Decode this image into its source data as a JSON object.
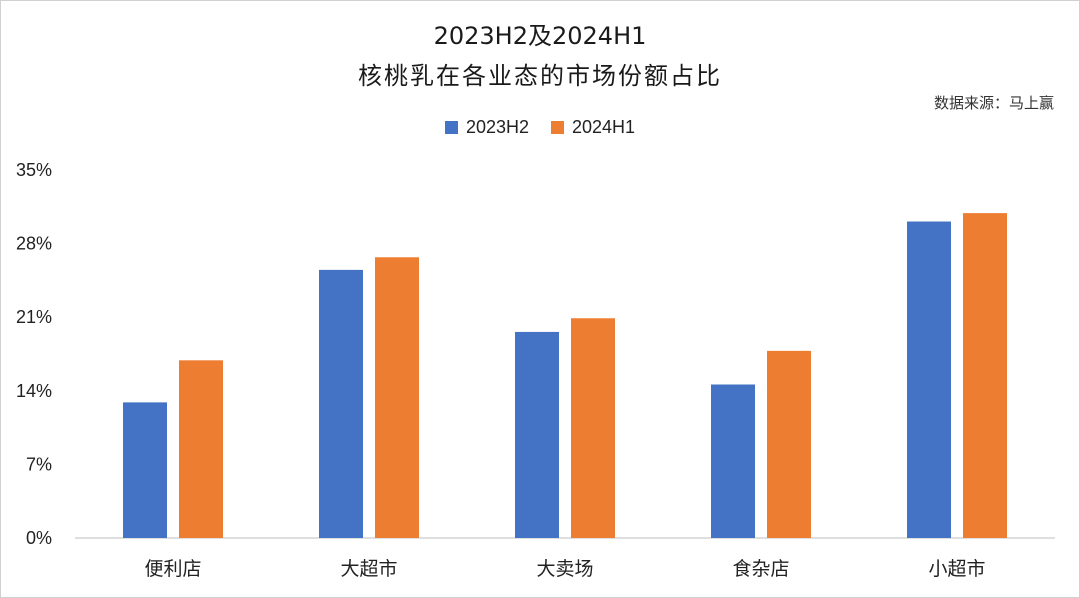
{
  "chart_data": {
    "type": "bar",
    "title_line1": "2023H2及2024H1",
    "title_line2": "核桃乳在各业态的市场份额占比",
    "source": "数据来源：马上赢",
    "categories": [
      "便利店",
      "大超市",
      "大卖场",
      "食杂店",
      "小超市"
    ],
    "series": [
      {
        "name": "2023H2",
        "color": "#4472C4",
        "values": [
          12.9,
          25.5,
          19.6,
          14.6,
          30.1
        ]
      },
      {
        "name": "2024H1",
        "color": "#ED7D31",
        "values": [
          16.9,
          26.7,
          20.9,
          17.8,
          30.9
        ]
      }
    ],
    "ylim": [
      0,
      35
    ],
    "yticks": [
      "0%",
      "7%",
      "14%",
      "21%",
      "28%",
      "35%"
    ],
    "ytick_values": [
      0,
      7,
      14,
      21,
      28,
      35
    ],
    "legend": "top",
    "grid": false
  }
}
